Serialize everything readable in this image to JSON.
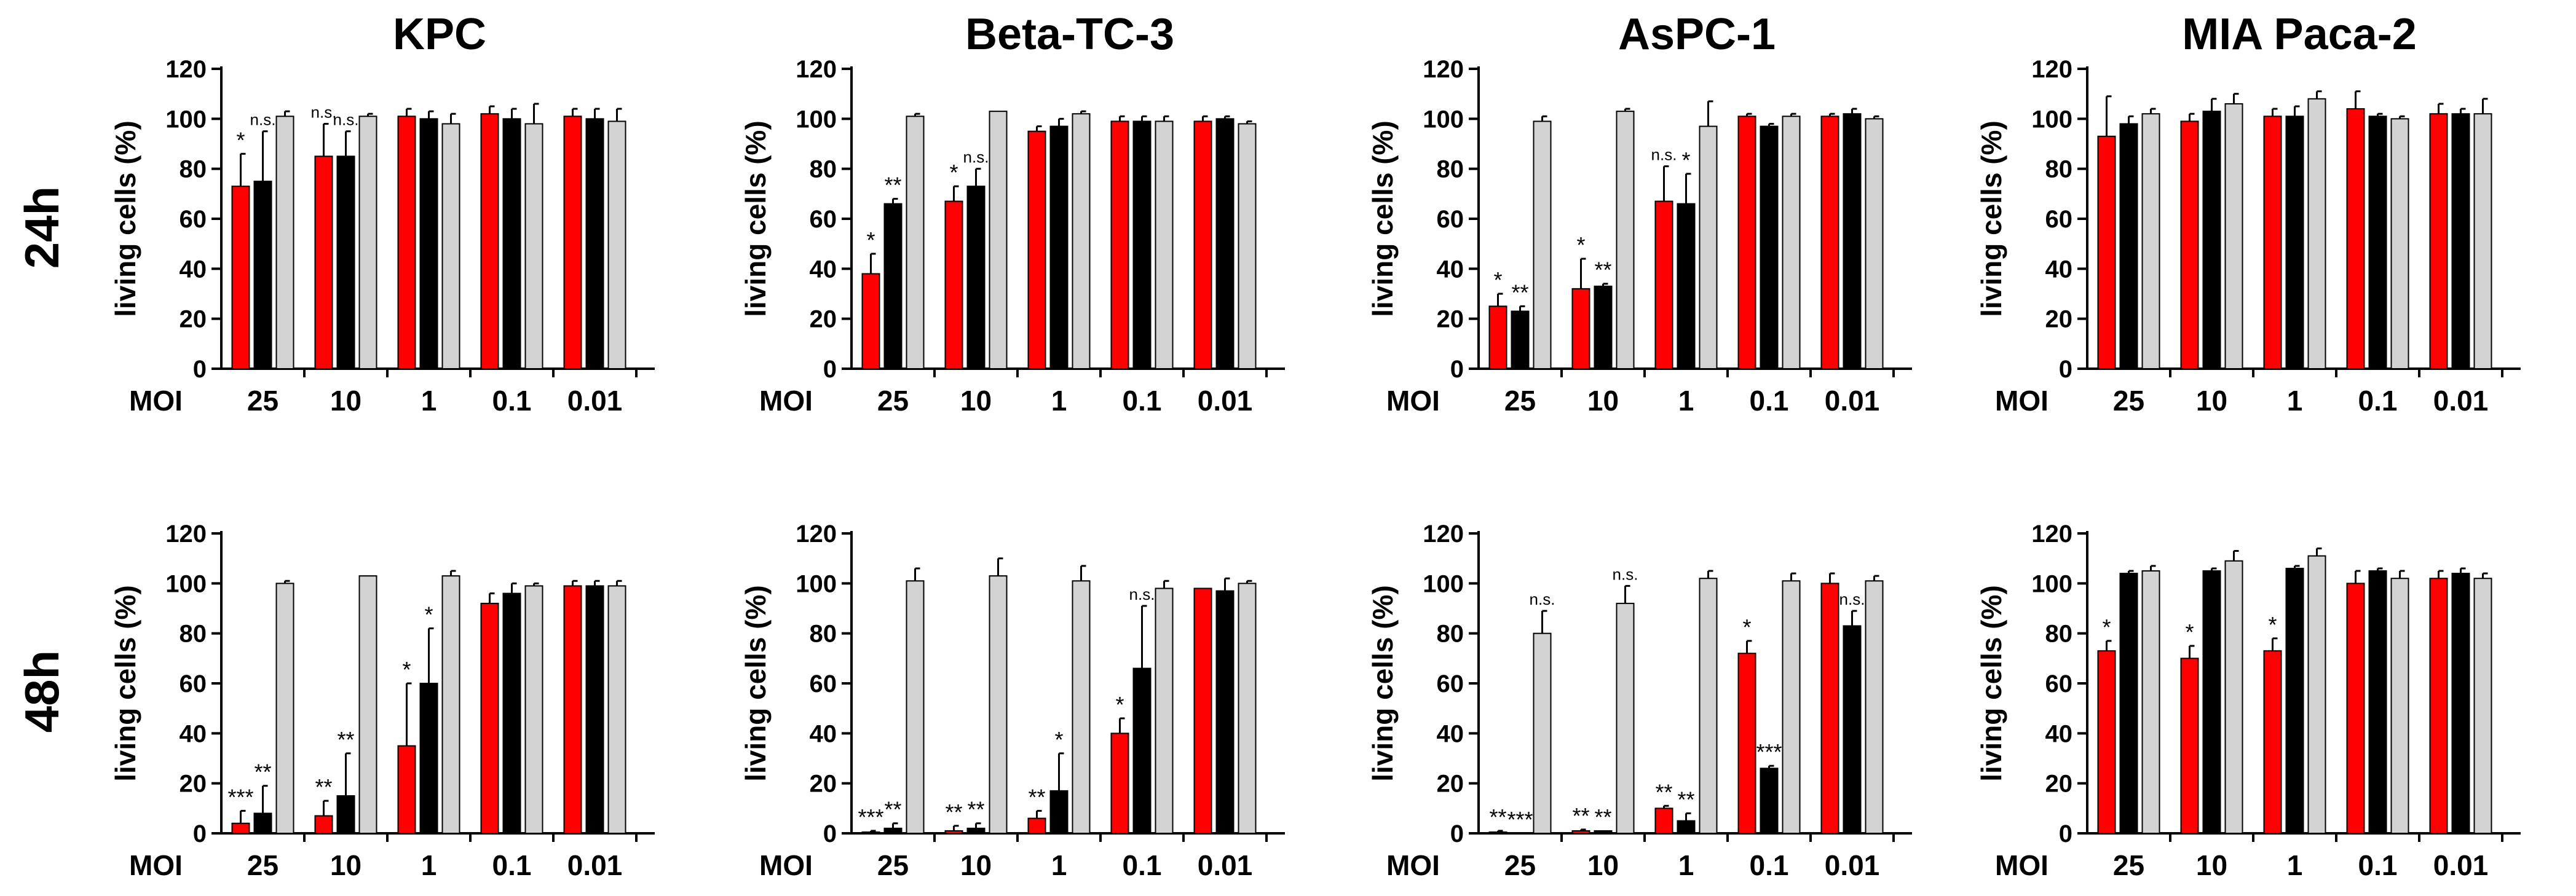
{
  "row_labels": [
    "24h",
    "48h"
  ],
  "colors": {
    "series_1": "#ff0000",
    "series_2": "#000000",
    "series_3": "#d3d3d3",
    "axis": "#000000"
  },
  "chart_data": [
    {
      "type": "bar",
      "title": "KPC",
      "row": "24h",
      "xlabel": "MOI",
      "ylabel": "living cells (%)",
      "ylim": [
        0,
        120
      ],
      "yticks": [
        0,
        20,
        40,
        60,
        80,
        100,
        120
      ],
      "categories": [
        "25",
        "10",
        "1",
        "0.1",
        "0.01"
      ],
      "series": [
        {
          "name": "series 1 (red)",
          "values": [
            73,
            85,
            101,
            102,
            101
          ],
          "errors": [
            13,
            13,
            3,
            3,
            3
          ],
          "labels": [
            "*",
            "n.s.",
            "",
            "",
            ""
          ]
        },
        {
          "name": "series 2 (black)",
          "values": [
            75,
            85,
            100,
            100,
            100
          ],
          "errors": [
            20,
            10,
            3,
            4,
            4
          ],
          "labels": [
            "n.s.",
            "n.s.",
            "",
            "",
            ""
          ]
        },
        {
          "name": "series 3 (grey)",
          "values": [
            101,
            101,
            98,
            98,
            99
          ],
          "errors": [
            2,
            1,
            4,
            8,
            5
          ],
          "labels": [
            "",
            "",
            "",
            "",
            ""
          ]
        }
      ]
    },
    {
      "type": "bar",
      "title": "Beta-TC-3",
      "row": "24h",
      "xlabel": "MOI",
      "ylabel": "living cells (%)",
      "ylim": [
        0,
        120
      ],
      "yticks": [
        0,
        20,
        40,
        60,
        80,
        100,
        120
      ],
      "categories": [
        "25",
        "10",
        "1",
        "0.1",
        "0.01"
      ],
      "series": [
        {
          "name": "series 1 (red)",
          "values": [
            38,
            67,
            95,
            99,
            99
          ],
          "errors": [
            8,
            6,
            2,
            2,
            2
          ],
          "labels": [
            "*",
            "*",
            "",
            "",
            ""
          ]
        },
        {
          "name": "series 2 (black)",
          "values": [
            66,
            73,
            97,
            99,
            100
          ],
          "errors": [
            2,
            7,
            3,
            2,
            1
          ],
          "labels": [
            "**",
            "n.s.",
            "",
            "",
            ""
          ]
        },
        {
          "name": "series 3 (grey)",
          "values": [
            101,
            103,
            102,
            99,
            98
          ],
          "errors": [
            1,
            0,
            1,
            2,
            1
          ],
          "labels": [
            "",
            "",
            "",
            "",
            ""
          ]
        }
      ]
    },
    {
      "type": "bar",
      "title": "AsPC-1",
      "row": "24h",
      "xlabel": "MOI",
      "ylabel": "living cells (%)",
      "ylim": [
        0,
        120
      ],
      "yticks": [
        0,
        20,
        40,
        60,
        80,
        100,
        120
      ],
      "categories": [
        "25",
        "10",
        "1",
        "0.1",
        "0.01"
      ],
      "series": [
        {
          "name": "series 1 (red)",
          "values": [
            25,
            32,
            67,
            101,
            101
          ],
          "errors": [
            5,
            12,
            14,
            1,
            1
          ],
          "labels": [
            "*",
            "*",
            "n.s.",
            "",
            ""
          ]
        },
        {
          "name": "series 2 (black)",
          "values": [
            23,
            33,
            66,
            97,
            102
          ],
          "errors": [
            2,
            1,
            12,
            1,
            2
          ],
          "labels": [
            "**",
            "**",
            "*",
            "",
            ""
          ]
        },
        {
          "name": "series 3 (grey)",
          "values": [
            99,
            103,
            97,
            101,
            100
          ],
          "errors": [
            2,
            1,
            10,
            1,
            1
          ],
          "labels": [
            "",
            "",
            "",
            "",
            ""
          ]
        }
      ]
    },
    {
      "type": "bar",
      "title": "MIA Paca-2",
      "row": "24h",
      "xlabel": "MOI",
      "ylabel": "living cells (%)",
      "ylim": [
        0,
        120
      ],
      "yticks": [
        0,
        20,
        40,
        60,
        80,
        100,
        120
      ],
      "categories": [
        "25",
        "10",
        "1",
        "0.1",
        "0.01"
      ],
      "series": [
        {
          "name": "series 1 (red)",
          "values": [
            93,
            99,
            101,
            104,
            102
          ],
          "errors": [
            16,
            3,
            3,
            7,
            4
          ],
          "labels": [
            "",
            "",
            "",
            "",
            ""
          ]
        },
        {
          "name": "series 2 (black)",
          "values": [
            98,
            103,
            101,
            101,
            102
          ],
          "errors": [
            3,
            5,
            4,
            1,
            2
          ],
          "labels": [
            "",
            "",
            "",
            "",
            ""
          ]
        },
        {
          "name": "series 3 (grey)",
          "values": [
            102,
            106,
            108,
            100,
            102
          ],
          "errors": [
            2,
            4,
            3,
            1,
            6
          ],
          "labels": [
            "",
            "",
            "",
            "",
            ""
          ]
        }
      ]
    },
    {
      "type": "bar",
      "title": "",
      "row": "48h",
      "xlabel": "MOI",
      "ylabel": "living cells (%)",
      "ylim": [
        0,
        120
      ],
      "yticks": [
        0,
        20,
        40,
        60,
        80,
        100,
        120
      ],
      "categories": [
        "25",
        "10",
        "1",
        "0.1",
        "0.01"
      ],
      "series": [
        {
          "name": "series 1 (red)",
          "values": [
            4,
            7,
            35,
            92,
            99
          ],
          "errors": [
            5,
            6,
            25,
            4,
            2
          ],
          "labels": [
            "***",
            "**",
            "*",
            "",
            ""
          ]
        },
        {
          "name": "series 2 (black)",
          "values": [
            8,
            15,
            60,
            96,
            99
          ],
          "errors": [
            11,
            17,
            22,
            4,
            2
          ],
          "labels": [
            "**",
            "**",
            "*",
            "",
            ""
          ]
        },
        {
          "name": "series 3 (grey)",
          "values": [
            100,
            103,
            103,
            99,
            99
          ],
          "errors": [
            1,
            0,
            2,
            1,
            2
          ],
          "labels": [
            "",
            "",
            "",
            "",
            ""
          ]
        }
      ]
    },
    {
      "type": "bar",
      "title": "",
      "row": "48h",
      "xlabel": "MOI",
      "ylabel": "living cells (%)",
      "ylim": [
        0,
        120
      ],
      "yticks": [
        0,
        20,
        40,
        60,
        80,
        100,
        120
      ],
      "categories": [
        "25",
        "10",
        "1",
        "0.1",
        "0.01"
      ],
      "series": [
        {
          "name": "series 1 (red)",
          "values": [
            0.5,
            1,
            6,
            40,
            98
          ],
          "errors": [
            0.5,
            2,
            3,
            6,
            0
          ],
          "labels": [
            "***",
            "**",
            "**",
            "*",
            ""
          ]
        },
        {
          "name": "series 2 (black)",
          "values": [
            2,
            2,
            17,
            66,
            97
          ],
          "errors": [
            2,
            2,
            15,
            25,
            5
          ],
          "labels": [
            "**",
            "**",
            "*",
            "n.s.",
            ""
          ]
        },
        {
          "name": "series 3 (grey)",
          "values": [
            101,
            103,
            101,
            98,
            100
          ],
          "errors": [
            5,
            7,
            6,
            3,
            1
          ],
          "labels": [
            "",
            "",
            "",
            "",
            ""
          ]
        }
      ]
    },
    {
      "type": "bar",
      "title": "",
      "row": "48h",
      "xlabel": "MOI",
      "ylabel": "living cells (%)",
      "ylim": [
        0,
        120
      ],
      "yticks": [
        0,
        20,
        40,
        60,
        80,
        100,
        120
      ],
      "categories": [
        "25",
        "10",
        "1",
        "0.1",
        "0.01"
      ],
      "series": [
        {
          "name": "series 1 (red)",
          "values": [
            0.5,
            1,
            10,
            72,
            100
          ],
          "errors": [
            0.5,
            0.5,
            1,
            5,
            4
          ],
          "labels": [
            "**",
            "**",
            "**",
            "*",
            ""
          ]
        },
        {
          "name": "series 2 (black)",
          "values": [
            0,
            1,
            5,
            26,
            83
          ],
          "errors": [
            0,
            0,
            3,
            1,
            6
          ],
          "labels": [
            "***",
            "**",
            "**",
            "***",
            "n.s."
          ]
        },
        {
          "name": "series 3 (grey)",
          "values": [
            80,
            92,
            102,
            101,
            101
          ],
          "errors": [
            9,
            7,
            3,
            3,
            2
          ],
          "labels": [
            "n.s.",
            "n.s.",
            "",
            "",
            ""
          ]
        }
      ]
    },
    {
      "type": "bar",
      "title": "",
      "row": "48h",
      "xlabel": "MOI",
      "ylabel": "living cells (%)",
      "ylim": [
        0,
        120
      ],
      "yticks": [
        0,
        20,
        40,
        60,
        80,
        100,
        120
      ],
      "categories": [
        "25",
        "10",
        "1",
        "0.1",
        "0.01"
      ],
      "series": [
        {
          "name": "series 1 (red)",
          "values": [
            73,
            70,
            73,
            100,
            102
          ],
          "errors": [
            4,
            5,
            5,
            5,
            3
          ],
          "labels": [
            "*",
            "*",
            "*",
            "",
            ""
          ]
        },
        {
          "name": "series 2 (black)",
          "values": [
            104,
            105,
            106,
            105,
            104
          ],
          "errors": [
            1,
            1,
            1,
            1,
            2
          ],
          "labels": [
            "",
            "",
            "",
            "",
            ""
          ]
        },
        {
          "name": "series 3 (grey)",
          "values": [
            105,
            109,
            111,
            102,
            102
          ],
          "errors": [
            2,
            4,
            3,
            3,
            2
          ],
          "labels": [
            "",
            "",
            "",
            "",
            ""
          ]
        }
      ]
    }
  ]
}
